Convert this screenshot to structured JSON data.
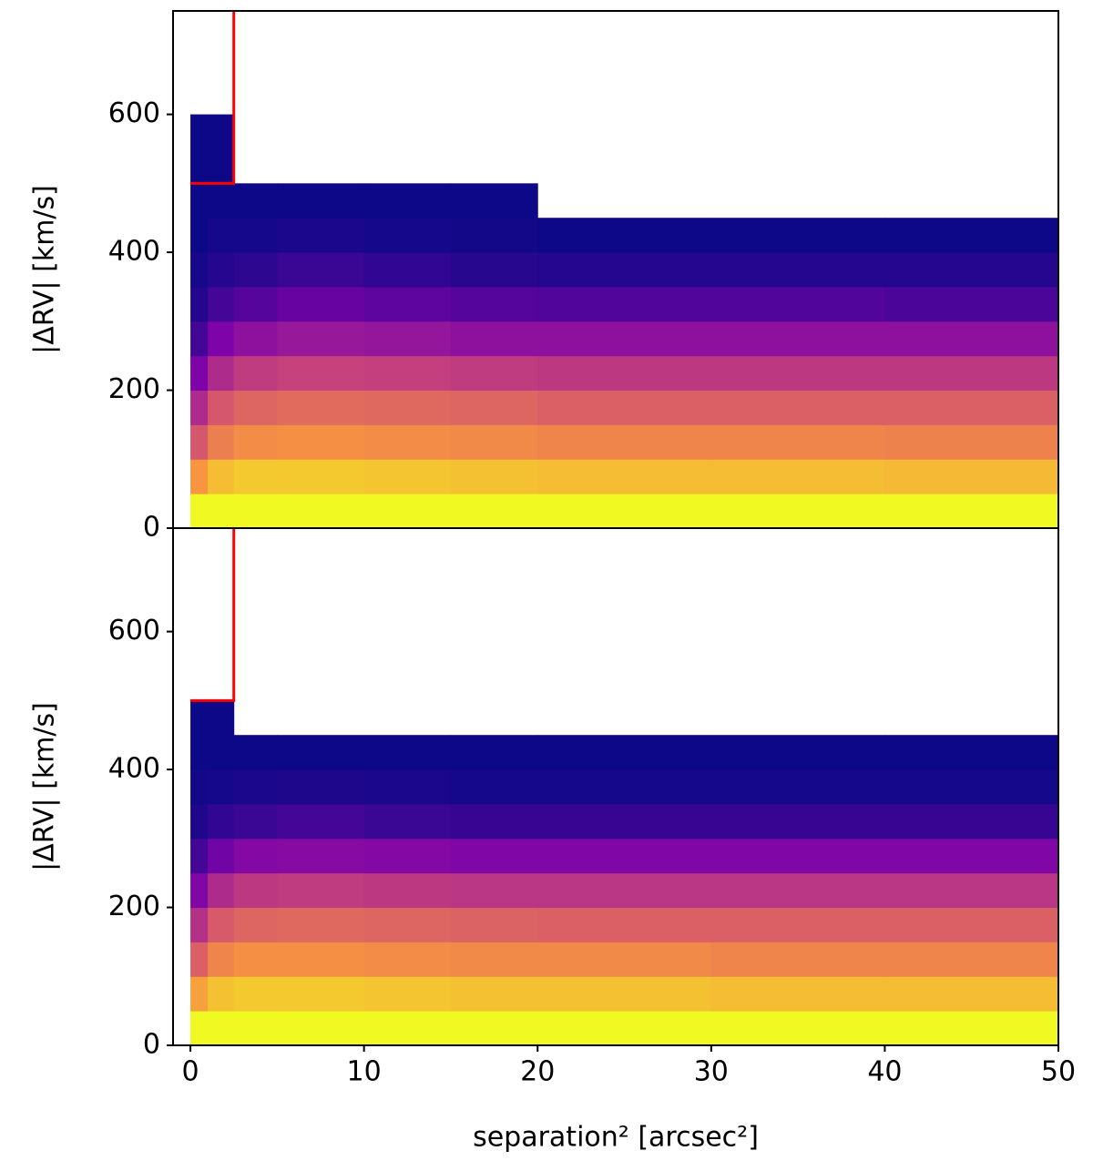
{
  "chart_data": [
    {
      "type": "heatmap",
      "colormap": "plasma",
      "ylabel": "|ΔRV| [km/s]",
      "xlim": [
        -1,
        50
      ],
      "ylim": [
        0,
        750
      ],
      "yticks": [
        0,
        200,
        400,
        600
      ],
      "xbins": [
        0,
        1,
        2.5,
        5,
        10,
        15,
        20,
        30,
        40,
        50
      ],
      "ybins": [
        0,
        50,
        100,
        150,
        200,
        250,
        300,
        350,
        400,
        450,
        500,
        550,
        600,
        650,
        700,
        750
      ],
      "values": [
        [
          1,
          1,
          1,
          1,
          1,
          1,
          1,
          1,
          1
        ],
        [
          0.75,
          0.85,
          0.88,
          0.88,
          0.87,
          0.86,
          0.85,
          0.85,
          0.84
        ],
        [
          0.55,
          0.68,
          0.72,
          0.73,
          0.72,
          0.71,
          0.7,
          0.7,
          0.69
        ],
        [
          0.4,
          0.55,
          0.6,
          0.62,
          0.61,
          0.6,
          0.58,
          0.58,
          0.58
        ],
        [
          0.25,
          0.4,
          0.46,
          0.48,
          0.47,
          0.46,
          0.45,
          0.45,
          0.45
        ],
        [
          0.12,
          0.25,
          0.3,
          0.33,
          0.32,
          0.3,
          0.3,
          0.3,
          0.3
        ],
        [
          0.05,
          0.12,
          0.16,
          0.2,
          0.18,
          0.16,
          0.15,
          0.15,
          0.14
        ],
        [
          0.02,
          0.05,
          0.07,
          0.1,
          0.08,
          0.06,
          0.05,
          0.05,
          0.05
        ],
        [
          0,
          0.02,
          0.02,
          0.03,
          0.02,
          0.01,
          0,
          0,
          0
        ],
        [
          0,
          0,
          0,
          0,
          0,
          0,
          null,
          null,
          null
        ],
        [
          0,
          0,
          null,
          null,
          null,
          null,
          null,
          null,
          null
        ],
        [
          0,
          0,
          null,
          null,
          null,
          null,
          null,
          null,
          null
        ],
        [
          null,
          null,
          null,
          null,
          null,
          null,
          null,
          null,
          null
        ],
        [
          null,
          null,
          null,
          null,
          null,
          null,
          null,
          null,
          null
        ],
        [
          null,
          null,
          null,
          null,
          null,
          null,
          null,
          null,
          null
        ]
      ],
      "lines": [
        {
          "x": [
            0,
            2.5,
            2.5
          ],
          "y": [
            500,
            500,
            750
          ],
          "color": "#ff0000"
        }
      ]
    },
    {
      "type": "heatmap",
      "colormap": "plasma",
      "ylabel": "|ΔRV| [km/s]",
      "xlabel": "separation² [arcsec²]",
      "xlim": [
        -1,
        50
      ],
      "ylim": [
        0,
        750
      ],
      "yticks": [
        0,
        200,
        400,
        600
      ],
      "xticks": [
        0,
        10,
        20,
        30,
        40,
        50
      ],
      "xbins": [
        0,
        1,
        2.5,
        5,
        10,
        15,
        20,
        30,
        40,
        50
      ],
      "ybins": [
        0,
        50,
        100,
        150,
        200,
        250,
        300,
        350,
        400,
        450,
        500,
        550,
        600,
        650,
        700,
        750
      ],
      "values": [
        [
          1,
          1,
          1,
          1,
          1,
          1,
          1,
          1,
          1
        ],
        [
          0.78,
          0.86,
          0.88,
          0.88,
          0.87,
          0.86,
          0.86,
          0.85,
          0.85
        ],
        [
          0.58,
          0.7,
          0.73,
          0.73,
          0.72,
          0.71,
          0.71,
          0.7,
          0.7
        ],
        [
          0.42,
          0.56,
          0.6,
          0.61,
          0.6,
          0.59,
          0.58,
          0.58,
          0.58
        ],
        [
          0.26,
          0.4,
          0.45,
          0.46,
          0.45,
          0.44,
          0.44,
          0.44,
          0.44
        ],
        [
          0.12,
          0.22,
          0.27,
          0.28,
          0.27,
          0.26,
          0.26,
          0.26,
          0.26
        ],
        [
          0.04,
          0.08,
          0.1,
          0.12,
          0.1,
          0.09,
          0.09,
          0.09,
          0.09
        ],
        [
          0.01,
          0.02,
          0.03,
          0.04,
          0.03,
          0.02,
          0.02,
          0.02,
          0.02
        ],
        [
          0,
          0,
          0,
          0,
          0,
          0,
          0,
          0,
          0
        ],
        [
          0,
          0,
          null,
          null,
          null,
          null,
          null,
          null,
          null
        ],
        [
          null,
          null,
          null,
          null,
          null,
          null,
          null,
          null,
          null
        ],
        [
          null,
          null,
          null,
          null,
          null,
          null,
          null,
          null,
          null
        ],
        [
          null,
          null,
          null,
          null,
          null,
          null,
          null,
          null,
          null
        ],
        [
          null,
          null,
          null,
          null,
          null,
          null,
          null,
          null,
          null
        ],
        [
          null,
          null,
          null,
          null,
          null,
          null,
          null,
          null,
          null
        ]
      ],
      "lines": [
        {
          "x": [
            0,
            2.5,
            2.5
          ],
          "y": [
            500,
            500,
            750
          ],
          "color": "#ff0000"
        }
      ]
    }
  ]
}
